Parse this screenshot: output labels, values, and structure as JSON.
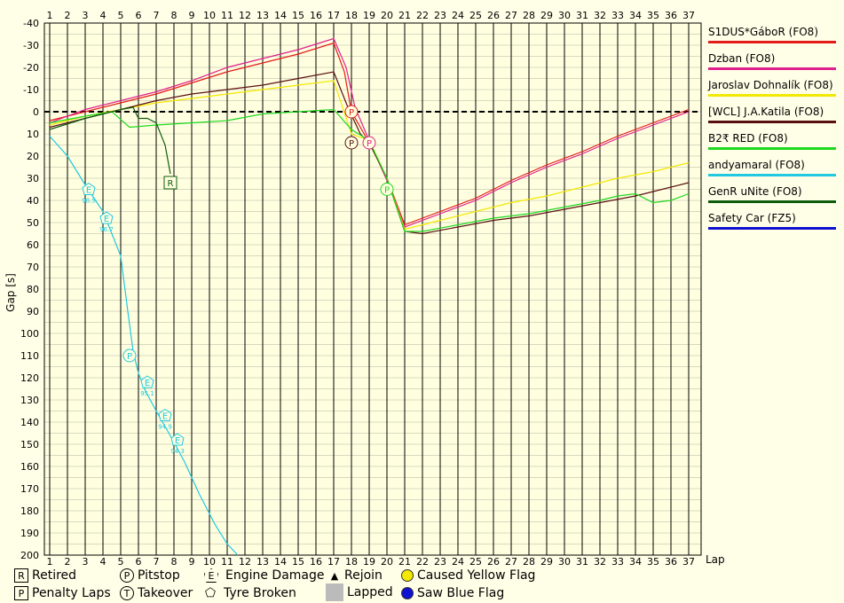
{
  "chart_data": {
    "type": "line",
    "xlabel": "Lap",
    "ylabel": "Gap [s]",
    "x_ticks": [
      1,
      2,
      3,
      4,
      5,
      6,
      7,
      8,
      9,
      10,
      11,
      12,
      13,
      14,
      15,
      16,
      17,
      18,
      19,
      20,
      21,
      22,
      23,
      24,
      25,
      26,
      27,
      28,
      29,
      30,
      31,
      32,
      33,
      34,
      35,
      36,
      37
    ],
    "y_ticks": [
      -40,
      -30,
      -20,
      -10,
      0,
      10,
      20,
      30,
      40,
      50,
      60,
      70,
      80,
      90,
      100,
      110,
      120,
      130,
      140,
      150,
      160,
      170,
      180,
      190,
      200
    ],
    "ylim": [
      -40,
      200
    ],
    "y_inverted": true,
    "grid": "on",
    "series": [
      {
        "name": "S1DUS*GáboR (FO8)",
        "color": "#e31b1b",
        "points": [
          [
            1,
            4
          ],
          [
            3,
            0
          ],
          [
            5,
            -4
          ],
          [
            7,
            -8
          ],
          [
            9,
            -13
          ],
          [
            11,
            -18
          ],
          [
            13,
            -22
          ],
          [
            15,
            -26
          ],
          [
            17,
            -31
          ],
          [
            17.6,
            -18
          ],
          [
            18,
            0
          ],
          [
            19,
            14
          ],
          [
            20,
            30
          ],
          [
            21,
            51
          ],
          [
            23,
            45
          ],
          [
            25,
            39
          ],
          [
            27,
            31
          ],
          [
            29,
            24
          ],
          [
            31,
            18
          ],
          [
            33,
            11
          ],
          [
            35,
            5
          ],
          [
            37,
            -1
          ]
        ]
      },
      {
        "name": "Dzban (FO8)",
        "color": "#e0208c",
        "points": [
          [
            1,
            5
          ],
          [
            3,
            -1
          ],
          [
            5,
            -5
          ],
          [
            7,
            -9
          ],
          [
            9,
            -14
          ],
          [
            11,
            -20
          ],
          [
            13,
            -24
          ],
          [
            15,
            -28
          ],
          [
            17,
            -33
          ],
          [
            17.7,
            -20
          ],
          [
            18.2,
            -2
          ],
          [
            19,
            13
          ],
          [
            20,
            31
          ],
          [
            21,
            52
          ],
          [
            23,
            46
          ],
          [
            25,
            40
          ],
          [
            27,
            32
          ],
          [
            29,
            25
          ],
          [
            31,
            19
          ],
          [
            33,
            12
          ],
          [
            35,
            6
          ],
          [
            37,
            0
          ]
        ]
      },
      {
        "name": "Jaroslav Dohnalík (FO8)",
        "color": "#f2e800",
        "points": [
          [
            1,
            6
          ],
          [
            3,
            2
          ],
          [
            5,
            -1
          ],
          [
            7,
            -4
          ],
          [
            9,
            -6
          ],
          [
            11,
            -8
          ],
          [
            13,
            -10
          ],
          [
            15,
            -12
          ],
          [
            17,
            -14
          ],
          [
            18,
            10
          ],
          [
            19,
            13
          ],
          [
            20,
            30
          ],
          [
            21,
            53
          ],
          [
            23,
            49
          ],
          [
            25,
            45
          ],
          [
            27,
            41
          ],
          [
            29,
            38
          ],
          [
            31,
            34
          ],
          [
            33,
            30
          ],
          [
            35,
            27
          ],
          [
            37,
            23
          ]
        ]
      },
      {
        "name": "[WCL] J.A.Katila (FO8)",
        "color": "#5a1010",
        "points": [
          [
            1,
            7
          ],
          [
            3,
            3
          ],
          [
            5,
            -1
          ],
          [
            7,
            -5
          ],
          [
            9,
            -8
          ],
          [
            11,
            -10
          ],
          [
            13,
            -12
          ],
          [
            15,
            -15
          ],
          [
            17,
            -18
          ],
          [
            17.8,
            -2
          ],
          [
            18.5,
            10
          ],
          [
            19,
            14
          ],
          [
            20,
            30
          ],
          [
            21,
            54
          ],
          [
            22,
            55
          ],
          [
            24,
            52
          ],
          [
            26,
            49
          ],
          [
            28,
            47
          ],
          [
            30,
            44
          ],
          [
            32,
            41
          ],
          [
            34,
            38
          ],
          [
            35,
            36
          ],
          [
            37,
            32
          ]
        ]
      },
      {
        "name": "B2₹ RED (FO8)",
        "color": "#1ed81e",
        "points": [
          [
            1,
            5
          ],
          [
            3,
            2
          ],
          [
            4.5,
            0
          ],
          [
            5.5,
            7
          ],
          [
            7,
            6
          ],
          [
            9,
            5
          ],
          [
            11,
            4
          ],
          [
            13,
            1
          ],
          [
            15,
            0
          ],
          [
            17,
            -1
          ],
          [
            18,
            8
          ],
          [
            19,
            13
          ],
          [
            20,
            30
          ],
          [
            21,
            54
          ],
          [
            22,
            54
          ],
          [
            24,
            51
          ],
          [
            26,
            48
          ],
          [
            28,
            46
          ],
          [
            30,
            43
          ],
          [
            32,
            40
          ],
          [
            33,
            38
          ],
          [
            34,
            37
          ],
          [
            35,
            41
          ],
          [
            36,
            40
          ],
          [
            37,
            37
          ]
        ]
      },
      {
        "name": "andyamaral (FO8)",
        "color": "#20c8e0",
        "points": [
          [
            1,
            11
          ],
          [
            2,
            20
          ],
          [
            3,
            33
          ],
          [
            4,
            45
          ],
          [
            5,
            65
          ],
          [
            5.4,
            90
          ],
          [
            5.7,
            108
          ],
          [
            6,
            118
          ],
          [
            6.4,
            126
          ],
          [
            7,
            135
          ],
          [
            7.5,
            142
          ],
          [
            8,
            149
          ],
          [
            8.6,
            158
          ],
          [
            9.4,
            172
          ],
          [
            10.3,
            186
          ],
          [
            11,
            195
          ],
          [
            11.6,
            200
          ]
        ]
      },
      {
        "name": "GenR uNite (FO8)",
        "color": "#0d5c0d",
        "points": [
          [
            1,
            8
          ],
          [
            3,
            3
          ],
          [
            5,
            -1
          ],
          [
            5.7,
            -2
          ],
          [
            6,
            3
          ],
          [
            6.5,
            3
          ],
          [
            7,
            5
          ],
          [
            7.5,
            15
          ],
          [
            7.8,
            28
          ]
        ]
      },
      {
        "name": "Safety Car (FZ5)",
        "color": "#1010d0",
        "points": []
      }
    ],
    "event_markers": [
      {
        "code": "R",
        "x": 7.8,
        "y": 32,
        "color": "#0d5c0d"
      },
      {
        "code": "P",
        "x": 18,
        "y": 0,
        "color": "#e31b1b"
      },
      {
        "code": "P",
        "x": 18,
        "y": 14,
        "color": "#5a1010"
      },
      {
        "code": "P",
        "x": 19,
        "y": 14,
        "color": "#e0208c"
      },
      {
        "code": "P",
        "x": 20,
        "y": 35,
        "color": "#1ed81e"
      },
      {
        "code": "P",
        "x": 5.5,
        "y": 110,
        "color": "#20c8e0"
      },
      {
        "code": "E",
        "x": 3.2,
        "y": 35,
        "color": "#20c8e0",
        "note": "98.5"
      },
      {
        "code": "E",
        "x": 4.2,
        "y": 48,
        "color": "#20c8e0",
        "note": "96.7"
      },
      {
        "code": "E",
        "x": 6.5,
        "y": 122,
        "color": "#20c8e0",
        "note": "95.1"
      },
      {
        "code": "E",
        "x": 7.5,
        "y": 137,
        "color": "#20c8e0",
        "note": "94.9"
      },
      {
        "code": "E",
        "x": 8.2,
        "y": 148,
        "color": "#20c8e0",
        "note": "94.3"
      }
    ]
  },
  "key": {
    "retired": "Retired",
    "penalty_laps": "Penalty Laps",
    "pitstop": "Pitstop",
    "takeover": "Takeover",
    "engine_damage": "Engine Damage",
    "tyre_broken": "Tyre Broken",
    "rejoin": "Rejoin",
    "lapped": "Lapped",
    "caused_yellow": "Caused Yellow Flag",
    "saw_blue": "Saw Blue Flag",
    "sym_r": "R",
    "sym_p": "P",
    "sym_t": "T",
    "sym_e": "E",
    "sym_rejoin": "▲"
  }
}
